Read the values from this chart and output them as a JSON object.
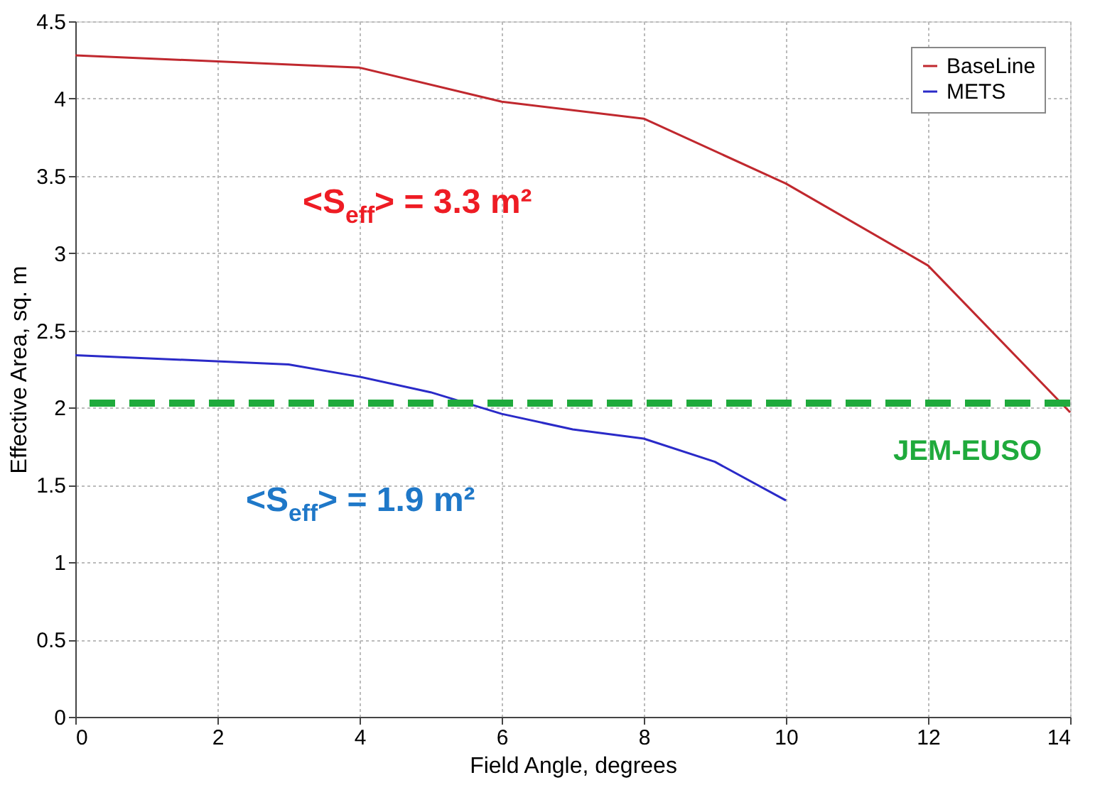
{
  "chart_data": {
    "type": "line",
    "xlabel": "Field Angle, degrees",
    "ylabel": "Effective Area, sq. m",
    "xlim": [
      0,
      14
    ],
    "xticks": [
      0,
      2,
      4,
      6,
      8,
      10,
      12,
      14
    ],
    "ylim": [
      0,
      4.5
    ],
    "yticks": [
      0,
      0.5,
      1,
      1.5,
      2,
      2.5,
      3,
      3.5,
      4,
      4.5
    ],
    "grid": true,
    "legend": "top right",
    "line_style": "solid",
    "marker": "none",
    "series": [
      {
        "name": "BaseLine",
        "color": "#c0282e",
        "x": [
          0,
          4,
          6,
          8,
          10,
          12,
          14
        ],
        "values": [
          4.28,
          4.2,
          3.98,
          3.87,
          3.45,
          2.92,
          1.97
        ]
      },
      {
        "name": "METS",
        "color": "#2a2ac8",
        "x": [
          0,
          3,
          4,
          5,
          6,
          7,
          8,
          9,
          10
        ],
        "values": [
          2.34,
          2.28,
          2.2,
          2.1,
          1.96,
          1.86,
          1.8,
          1.65,
          1.4
        ]
      }
    ],
    "ref_lines": [
      {
        "axis": "y",
        "value": 2.03,
        "label": "JEM-EUSO",
        "color": "#1faa3c",
        "line_style": "dashed"
      }
    ],
    "annotations": [
      "<S$_{eff}$> = 3.3 m²",
      "<S$_{eff}$> = 1.9 m²"
    ]
  }
}
